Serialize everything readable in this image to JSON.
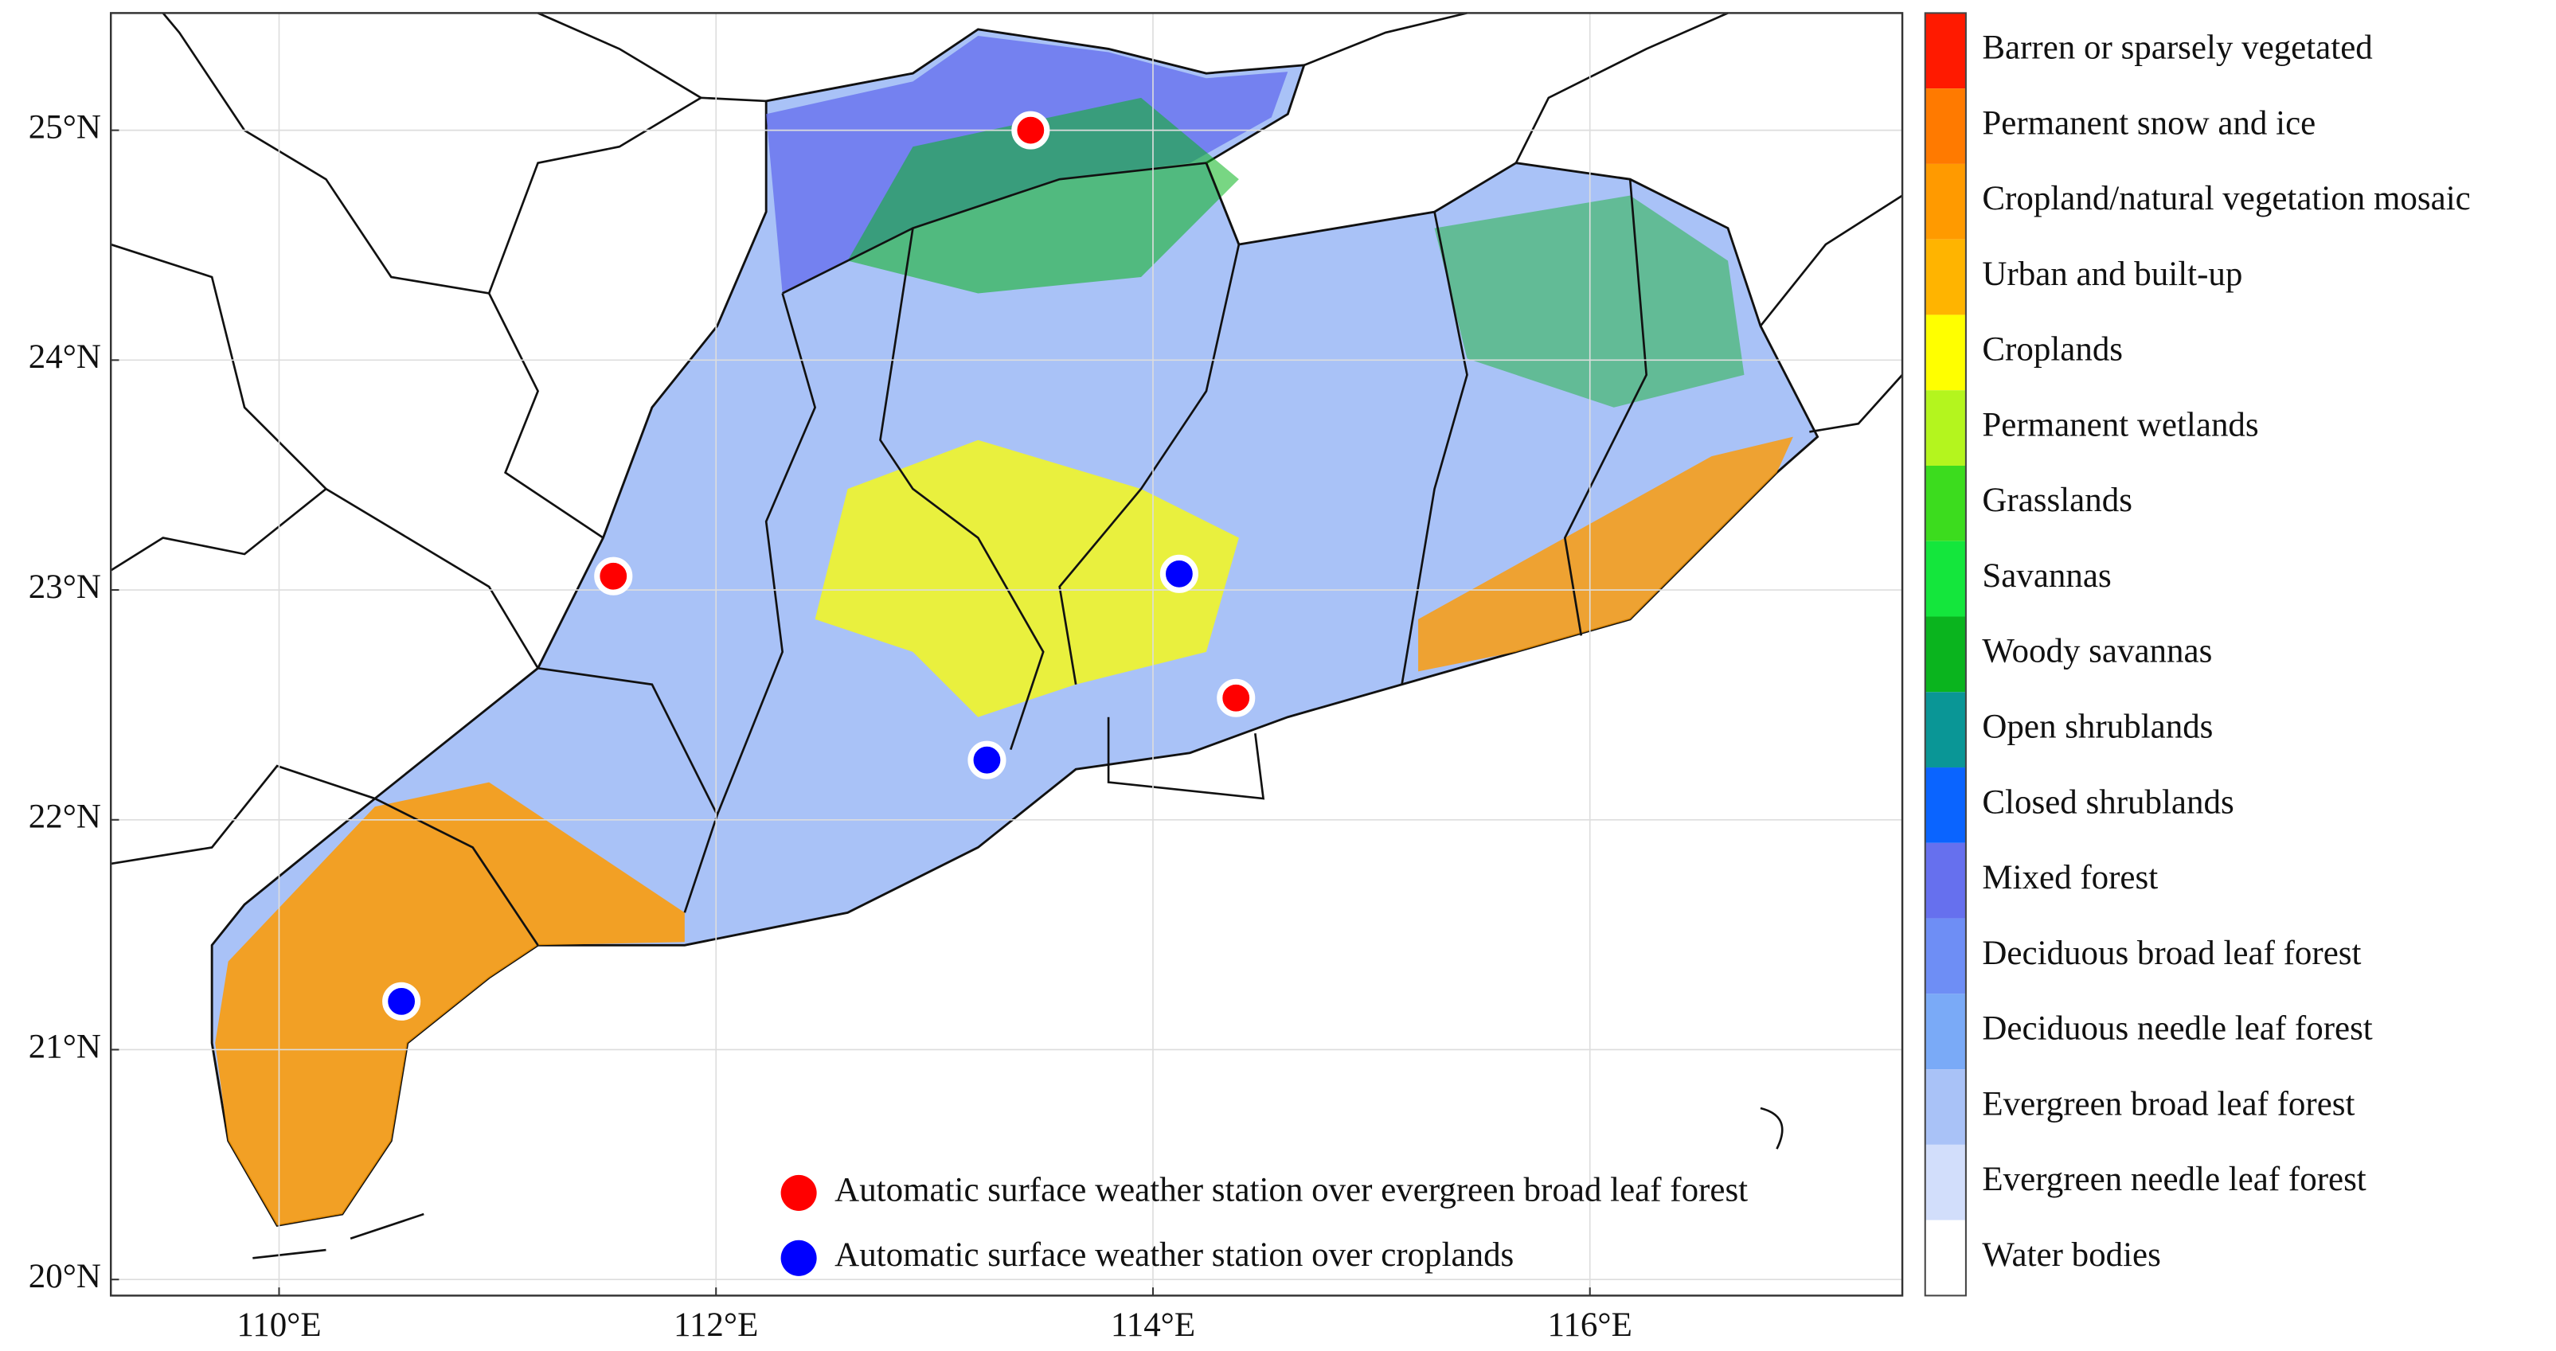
{
  "map": {
    "lonlim": [
      109.23,
      117.43
    ],
    "latlim": [
      19.93,
      25.51
    ],
    "lon_ticks": [
      {
        "value": 110,
        "label": "110°E"
      },
      {
        "value": 112,
        "label": "112°E"
      },
      {
        "value": 114,
        "label": "114°E"
      },
      {
        "value": 116,
        "label": "116°E"
      }
    ],
    "lat_ticks": [
      {
        "value": 20,
        "label": "20°N"
      },
      {
        "value": 21,
        "label": "21°N"
      },
      {
        "value": 22,
        "label": "22°N"
      },
      {
        "value": 23,
        "label": "23°N"
      },
      {
        "value": 24,
        "label": "24°N"
      },
      {
        "value": 25,
        "label": "25°N"
      }
    ],
    "grid": true,
    "land_cover": {
      "classes": [
        "Barren or sparsely vegetated",
        "Permanent snow and ice",
        "Cropland/natural vegetation mosaic",
        "Urban and built-up",
        "Croplands",
        "Permanent wetlands",
        "Grasslands",
        "Savannas",
        "Woody savannas",
        "Open shrublands",
        "Closed shrublands",
        "Mixed forest",
        "Deciduous broad leaf forest",
        "Deciduous needle leaf forest",
        "Evergreen broad leaf forest",
        "Evergreen needle leaf forest",
        "Water bodies"
      ],
      "colors": [
        "#ff1a00",
        "#ff7a00",
        "#ff9a00",
        "#ffb400",
        "#ffff00",
        "#b4f51e",
        "#3cdc1e",
        "#14e63c",
        "#0ab41e",
        "#0a9696",
        "#0a64ff",
        "#6670ee",
        "#6e8ef5",
        "#7aaaf7",
        "#a9c2f7",
        "#d2defb",
        "#ffffff"
      ]
    },
    "station_groups": [
      {
        "label": "Automatic surface weather station over evergreen broad leaf forest",
        "color": "#ff0000",
        "lon": [
          113.44,
          111.53,
          114.38
        ],
        "lat": [
          25.0,
          23.06,
          22.53
        ]
      },
      {
        "label": "Automatic surface weather station over croplands",
        "color": "#0000ff",
        "lon": [
          114.12,
          113.24,
          110.56
        ],
        "lat": [
          23.07,
          22.26,
          21.21
        ]
      }
    ]
  }
}
